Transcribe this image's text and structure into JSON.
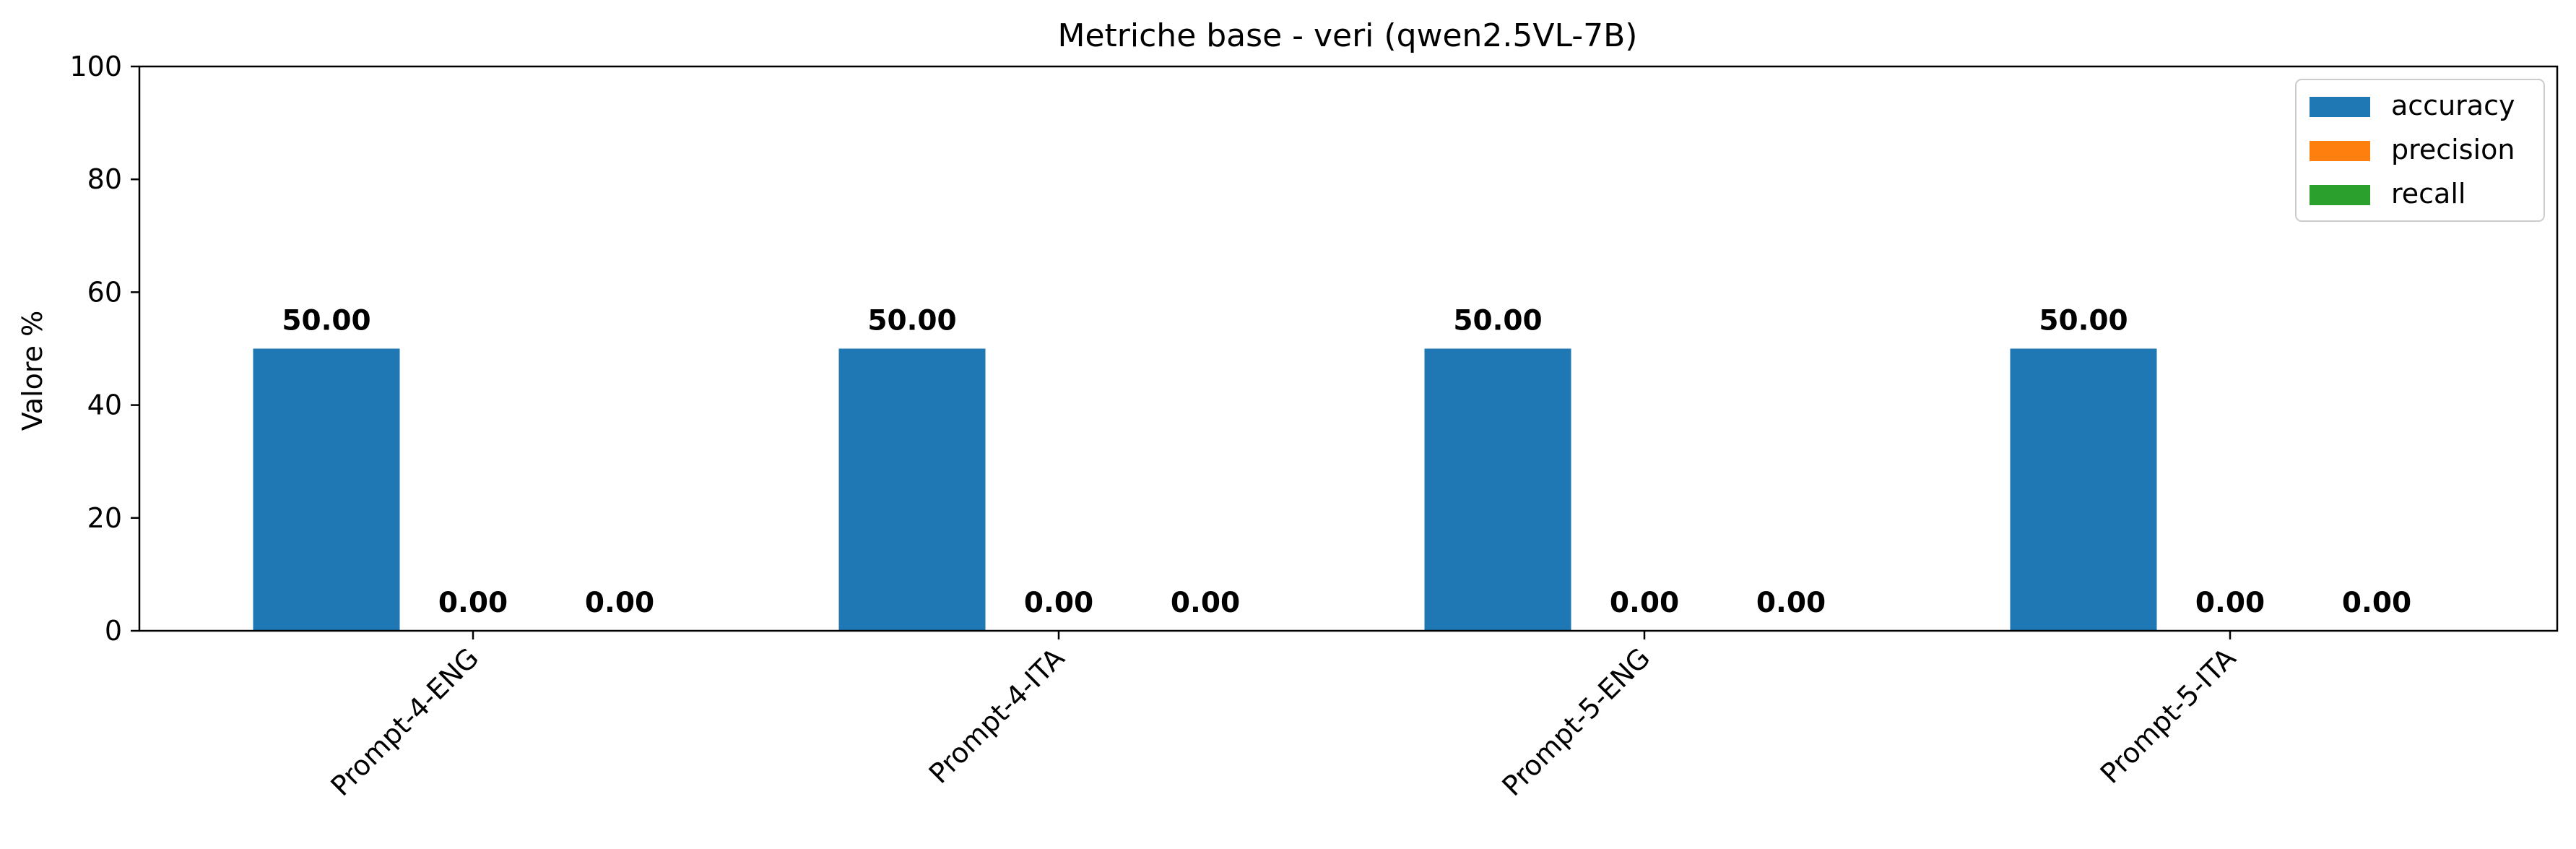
{
  "chart_data": {
    "type": "bar",
    "title": "Metriche base - veri (qwen2.5VL-7B)",
    "xlabel": "",
    "ylabel": "Valore %",
    "ylim": [
      0,
      100
    ],
    "yticks": [
      0,
      20,
      40,
      60,
      80,
      100
    ],
    "categories": [
      "Prompt-4-ENG",
      "Prompt-4-ITA",
      "Prompt-5-ENG",
      "Prompt-5-ITA"
    ],
    "series": [
      {
        "name": "accuracy",
        "color": "#1f77b4",
        "values": [
          50.0,
          50.0,
          50.0,
          50.0
        ]
      },
      {
        "name": "precision",
        "color": "#ff7f0e",
        "values": [
          0.0,
          0.0,
          0.0,
          0.0
        ]
      },
      {
        "name": "recall",
        "color": "#2ca02c",
        "values": [
          0.0,
          0.0,
          0.0,
          0.0
        ]
      }
    ],
    "value_label_format": "2 decimals",
    "grid": false,
    "legend_position": "top-right",
    "xtick_rotation": "45"
  }
}
